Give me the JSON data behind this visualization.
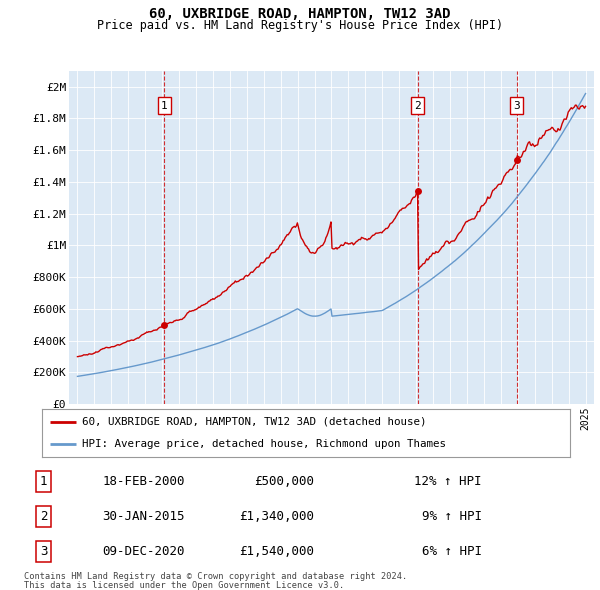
{
  "title": "60, UXBRIDGE ROAD, HAMPTON, TW12 3AD",
  "subtitle": "Price paid vs. HM Land Registry's House Price Index (HPI)",
  "bg_color": "#dce9f5",
  "plot_bg_color": "#dce9f5",
  "red_color": "#cc0000",
  "blue_color": "#6699cc",
  "transactions": [
    {
      "id": 1,
      "date_num": 2000.13,
      "price": 500000,
      "label": "18-FEB-2000",
      "price_str": "£500,000",
      "hpi_str": "12% ↑ HPI"
    },
    {
      "id": 2,
      "date_num": 2015.08,
      "price": 1340000,
      "label": "30-JAN-2015",
      "price_str": "£1,340,000",
      "hpi_str": "9% ↑ HPI"
    },
    {
      "id": 3,
      "date_num": 2020.93,
      "price": 1540000,
      "label": "09-DEC-2020",
      "price_str": "£1,540,000",
      "hpi_str": "6% ↑ HPI"
    }
  ],
  "yticks": [
    0,
    200000,
    400000,
    600000,
    800000,
    1000000,
    1200000,
    1400000,
    1600000,
    1800000,
    2000000
  ],
  "ylabels": [
    "£0",
    "£200K",
    "£400K",
    "£600K",
    "£800K",
    "£1M",
    "£1.2M",
    "£1.4M",
    "£1.6M",
    "£1.8M",
    "£2M"
  ],
  "xmin": 1994.5,
  "xmax": 2025.5,
  "ymin": 0,
  "ymax": 2100000,
  "legend_line1": "60, UXBRIDGE ROAD, HAMPTON, TW12 3AD (detached house)",
  "legend_line2": "HPI: Average price, detached house, Richmond upon Thames",
  "footer1": "Contains HM Land Registry data © Crown copyright and database right 2024.",
  "footer2": "This data is licensed under the Open Government Licence v3.0.",
  "trans_dates": [
    2000.13,
    2015.08,
    2020.93
  ],
  "trans_prices": [
    500000,
    1340000,
    1540000
  ]
}
